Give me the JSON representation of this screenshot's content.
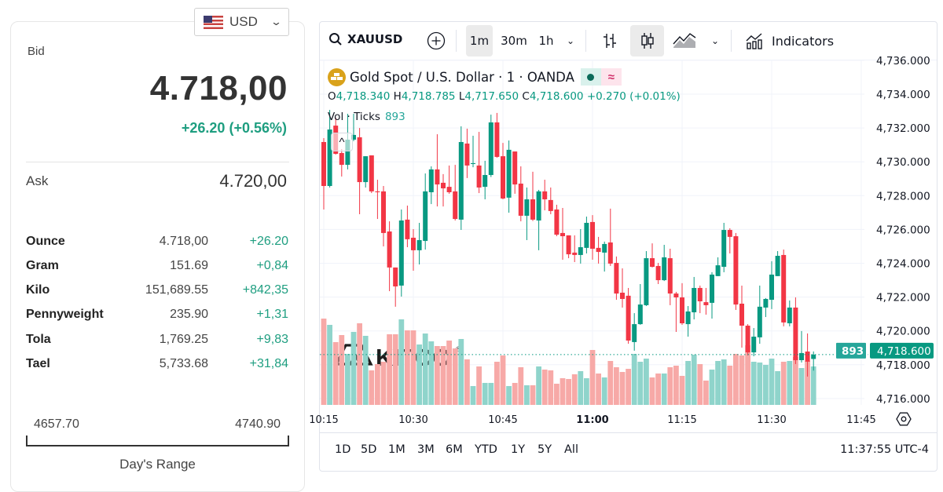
{
  "currency": {
    "selected": "USD",
    "icon": "us-flag-icon"
  },
  "quote": {
    "bid_label": "Bid",
    "bid_value": "4.718,00",
    "bid_change": "+26.20 (+0.56%)",
    "ask_label": "Ask",
    "ask_value": "4.720,00",
    "up_color": "#1e9e80"
  },
  "units": [
    {
      "name": "Ounce",
      "value": "4.718,00",
      "change": "+26.20"
    },
    {
      "name": "Gram",
      "value": "151.69",
      "change": "+0,84"
    },
    {
      "name": "Kilo",
      "value": "151,689.55",
      "change": "+842,35"
    },
    {
      "name": "Pennyweight",
      "value": "235.90",
      "change": "+1,31"
    },
    {
      "name": "Tola",
      "value": "1,769.25",
      "change": "+9,83"
    },
    {
      "name": "Tael",
      "value": "5,733.68",
      "change": "+31,84"
    }
  ],
  "day_range": {
    "low": "4657.70",
    "high": "4740.90",
    "label": "Day's Range"
  },
  "toolbar": {
    "symbol": "XAUUSD",
    "intervals": [
      "1m",
      "30m",
      "1h"
    ],
    "active_interval": "1m",
    "active_chart_style": "candles",
    "indicators_label": "Indicators"
  },
  "legend": {
    "title": "Gold Spot / U.S. Dollar · 1 · OANDA",
    "o_label": "O",
    "o": "4,718.340",
    "h_label": "H",
    "h": "4,718.785",
    "l_label": "L",
    "l": "4,717.650",
    "c_label": "C",
    "c": "4,718.600",
    "change": "+0.270 (+0.01%)",
    "vol_label": "Vol · Ticks",
    "vol_value": "893",
    "market_status_icon": "market-open-dot-icon",
    "delay_icon": "approx-icon"
  },
  "watermark": {
    "text": "KITCO",
    "mark": "®"
  },
  "range_buttons": [
    "1D",
    "5D",
    "1M",
    "3M",
    "6M",
    "YTD",
    "1Y",
    "5Y",
    "All"
  ],
  "clock": "11:37:55 UTC-4",
  "chart_data": {
    "type": "candlestick",
    "interval": "1m",
    "up_color": "#089981",
    "down_color": "#f23645",
    "grid": true,
    "ylim": [
      4715.3,
      4736.4
    ],
    "y_ticks": [
      "4,716.000",
      "4,718.000",
      "4,720.000",
      "4,722.000",
      "4,724.000",
      "4,726.000",
      "4,728.000",
      "4,730.000",
      "4,732.000",
      "4,734.000",
      "4,736.000"
    ],
    "x_ticks": [
      "10:15",
      "10:30",
      "10:45",
      "11:00",
      "11:15",
      "11:30",
      "11:45"
    ],
    "last_price": "4,718.600",
    "last_volume": "893",
    "x": [
      "10:15",
      "10:16",
      "10:17",
      "10:18",
      "10:19",
      "10:20",
      "10:21",
      "10:22",
      "10:23",
      "10:24",
      "10:25",
      "10:26",
      "10:27",
      "10:28",
      "10:29",
      "10:30",
      "10:31",
      "10:32",
      "10:33",
      "10:34",
      "10:35",
      "10:36",
      "10:37",
      "10:38",
      "10:39",
      "10:40",
      "10:41",
      "10:42",
      "10:43",
      "10:44",
      "10:45",
      "10:46",
      "10:47",
      "10:48",
      "10:49",
      "10:50",
      "10:51",
      "10:52",
      "10:53",
      "10:54",
      "10:55",
      "10:56",
      "10:57",
      "10:58",
      "10:59",
      "11:00",
      "11:01",
      "11:02",
      "11:03",
      "11:04",
      "11:05",
      "11:06",
      "11:07",
      "11:08",
      "11:09",
      "11:10",
      "11:11",
      "11:12",
      "11:13",
      "11:14",
      "11:15",
      "11:16",
      "11:17",
      "11:18",
      "11:19",
      "11:20",
      "11:21",
      "11:22",
      "11:23",
      "11:24",
      "11:25",
      "11:26",
      "11:27",
      "11:28",
      "11:29",
      "11:30",
      "11:31",
      "11:32",
      "11:33",
      "11:34",
      "11:35",
      "11:36",
      "11:37"
    ],
    "ohlc": [
      [
        4731.17,
        4731.4,
        4727.18,
        4728.57
      ],
      [
        4728.57,
        4733.07,
        4728.48,
        4731.91
      ],
      [
        4732.14,
        4732.61,
        4730.43,
        4730.47
      ],
      [
        4730.52,
        4730.75,
        4729.13,
        4729.82
      ],
      [
        4729.82,
        4732.84,
        4729.55,
        4731.31
      ],
      [
        4731.31,
        4732.84,
        4731.22,
        4731.59
      ],
      [
        4731.45,
        4732.0,
        4726.9,
        4728.8
      ],
      [
        4728.8,
        4730.33,
        4728.48,
        4730.33
      ],
      [
        4730.38,
        4730.38,
        4728.15,
        4728.25
      ],
      [
        4728.25,
        4728.94,
        4726.62,
        4728.2
      ],
      [
        4728.25,
        4728.57,
        4725.0,
        4725.79
      ],
      [
        4725.88,
        4726.48,
        4722.35,
        4723.75
      ],
      [
        4723.75,
        4723.75,
        4721.43,
        4722.63
      ],
      [
        4722.68,
        4727.18,
        4722.03,
        4726.53
      ],
      [
        4726.58,
        4727.41,
        4724.95,
        4725.42
      ],
      [
        4725.51,
        4726.02,
        4723.56,
        4724.77
      ],
      [
        4724.77,
        4726.39,
        4723.93,
        4725.37
      ],
      [
        4725.32,
        4729.31,
        4724.81,
        4728.25
      ],
      [
        4728.2,
        4729.73,
        4727.5,
        4729.55
      ],
      [
        4729.55,
        4731.63,
        4727.36,
        4728.66
      ],
      [
        4728.76,
        4729.27,
        4727.36,
        4728.43
      ],
      [
        4728.52,
        4729.78,
        4728.11,
        4728.2
      ],
      [
        4728.25,
        4729.82,
        4726.53,
        4726.62
      ],
      [
        4726.58,
        4732.1,
        4725.97,
        4731.17
      ],
      [
        4731.08,
        4731.96,
        4729.04,
        4729.78
      ],
      [
        4729.87,
        4731.54,
        4729.68,
        4729.92
      ],
      [
        4729.78,
        4731.77,
        4728.15,
        4728.48
      ],
      [
        4728.52,
        4730.06,
        4727.78,
        4729.22
      ],
      [
        4729.22,
        4732.79,
        4729.1,
        4732.33
      ],
      [
        4732.33,
        4732.89,
        4730.24,
        4730.29
      ],
      [
        4730.33,
        4731.12,
        4727.78,
        4727.83
      ],
      [
        4727.88,
        4731.26,
        4726.99,
        4730.71
      ],
      [
        4730.61,
        4730.61,
        4728.11,
        4728.66
      ],
      [
        4728.71,
        4729.73,
        4726.48,
        4726.81
      ],
      [
        4726.81,
        4728.48,
        4725.37,
        4727.78
      ],
      [
        4727.78,
        4729.41,
        4726.5,
        4726.58
      ],
      [
        4726.53,
        4728.34,
        4724.77,
        4728.25
      ],
      [
        4728.25,
        4728.94,
        4727.13,
        4727.78
      ],
      [
        4727.74,
        4728.48,
        4726.9,
        4727.09
      ],
      [
        4727.18,
        4727.46,
        4725.6,
        4725.69
      ],
      [
        4725.79,
        4727.27,
        4724.21,
        4725.6
      ],
      [
        4725.65,
        4725.65,
        4724.3,
        4724.53
      ],
      [
        4724.63,
        4725.65,
        4724.07,
        4724.49
      ],
      [
        4724.49,
        4726.02,
        4723.98,
        4724.95
      ],
      [
        4724.91,
        4726.76,
        4724.58,
        4726.39
      ],
      [
        4726.44,
        4726.85,
        4724.21,
        4724.86
      ],
      [
        4724.91,
        4725.56,
        4723.98,
        4724.67
      ],
      [
        4724.63,
        4725.28,
        4723.51,
        4725.14
      ],
      [
        4725.23,
        4727.23,
        4723.84,
        4723.98
      ],
      [
        4724.02,
        4724.4,
        4721.84,
        4722.21
      ],
      [
        4722.26,
        4723.7,
        4721.38,
        4721.89
      ],
      [
        4722.08,
        4722.54,
        4719.24,
        4719.43
      ],
      [
        4719.34,
        4721.05,
        4718.83,
        4720.4
      ],
      [
        4720.4,
        4722.77,
        4720.36,
        4721.56
      ],
      [
        4721.52,
        4724.72,
        4721.47,
        4724.3
      ],
      [
        4724.3,
        4725.18,
        4723.75,
        4723.79
      ],
      [
        4723.84,
        4724.02,
        4722.77,
        4723.0
      ],
      [
        4723.0,
        4725.09,
        4722.95,
        4724.35
      ],
      [
        4724.3,
        4724.86,
        4721.52,
        4722.21
      ],
      [
        4722.21,
        4722.31,
        4719.94,
        4721.98
      ],
      [
        4721.98,
        4722.82,
        4720.36,
        4720.45
      ],
      [
        4720.4,
        4721.47,
        4719.66,
        4721.15
      ],
      [
        4721.1,
        4723.19,
        4720.68,
        4722.54
      ],
      [
        4722.54,
        4722.68,
        4721.05,
        4721.75
      ],
      [
        4721.7,
        4722.54,
        4720.96,
        4721.52
      ],
      [
        4721.66,
        4723.47,
        4720.73,
        4723.33
      ],
      [
        4723.24,
        4724.35,
        4723.24,
        4723.88
      ],
      [
        4723.79,
        4726.39,
        4723.47,
        4725.97
      ],
      [
        4725.97,
        4726.07,
        4724.58,
        4725.56
      ],
      [
        4725.6,
        4725.79,
        4721.24,
        4721.56
      ],
      [
        4721.61,
        4722.68,
        4719.01,
        4720.31
      ],
      [
        4720.31,
        4720.4,
        4718.55,
        4718.73
      ],
      [
        4718.73,
        4720.17,
        4718.5,
        4719.66
      ],
      [
        4719.62,
        4722.68,
        4719.24,
        4721.43
      ],
      [
        4721.38,
        4721.94,
        4720.82,
        4721.89
      ],
      [
        4721.84,
        4724.12,
        4721.29,
        4723.33
      ],
      [
        4723.24,
        4724.72,
        4723.24,
        4724.44
      ],
      [
        4724.49,
        4724.81,
        4720.27,
        4720.5
      ],
      [
        4720.45,
        4721.8,
        4720.27,
        4721.38
      ],
      [
        4721.38,
        4721.98,
        4718.04,
        4718.27
      ],
      [
        4718.27,
        4719.99,
        4718.13,
        4718.69
      ],
      [
        4718.78,
        4719.85,
        4717.3,
        4718.18
      ],
      [
        4718.34,
        4718.785,
        4717.65,
        4718.6
      ]
    ],
    "volume": [
      2002,
      1856,
      1456,
      1620,
      1183,
      1693,
      1893,
      1602,
      801,
      946,
      1001,
      1638,
      1638,
      1984,
      1729,
      1729,
      1401,
      1656,
      1474,
      1365,
      1365,
      1492,
      1310,
      1529,
      1056,
      437,
      892,
      510,
      510,
      1001,
      1147,
      437,
      510,
      874,
      455,
      455,
      892,
      819,
      801,
      491,
      619,
      601,
      710,
      783,
      619,
      1274,
      728,
      637,
      1019,
      874,
      764,
      837,
      1183,
      1001,
      1074,
      637,
      728,
      728,
      874,
      910,
      673,
      1019,
      1165,
      946,
      564,
      819,
      1019,
      1056,
      910,
      1183,
      1147,
      1383,
      1001,
      983,
      928,
      1074,
      783,
      1001,
      1019,
      1110,
      855,
      1019,
      893
    ]
  }
}
